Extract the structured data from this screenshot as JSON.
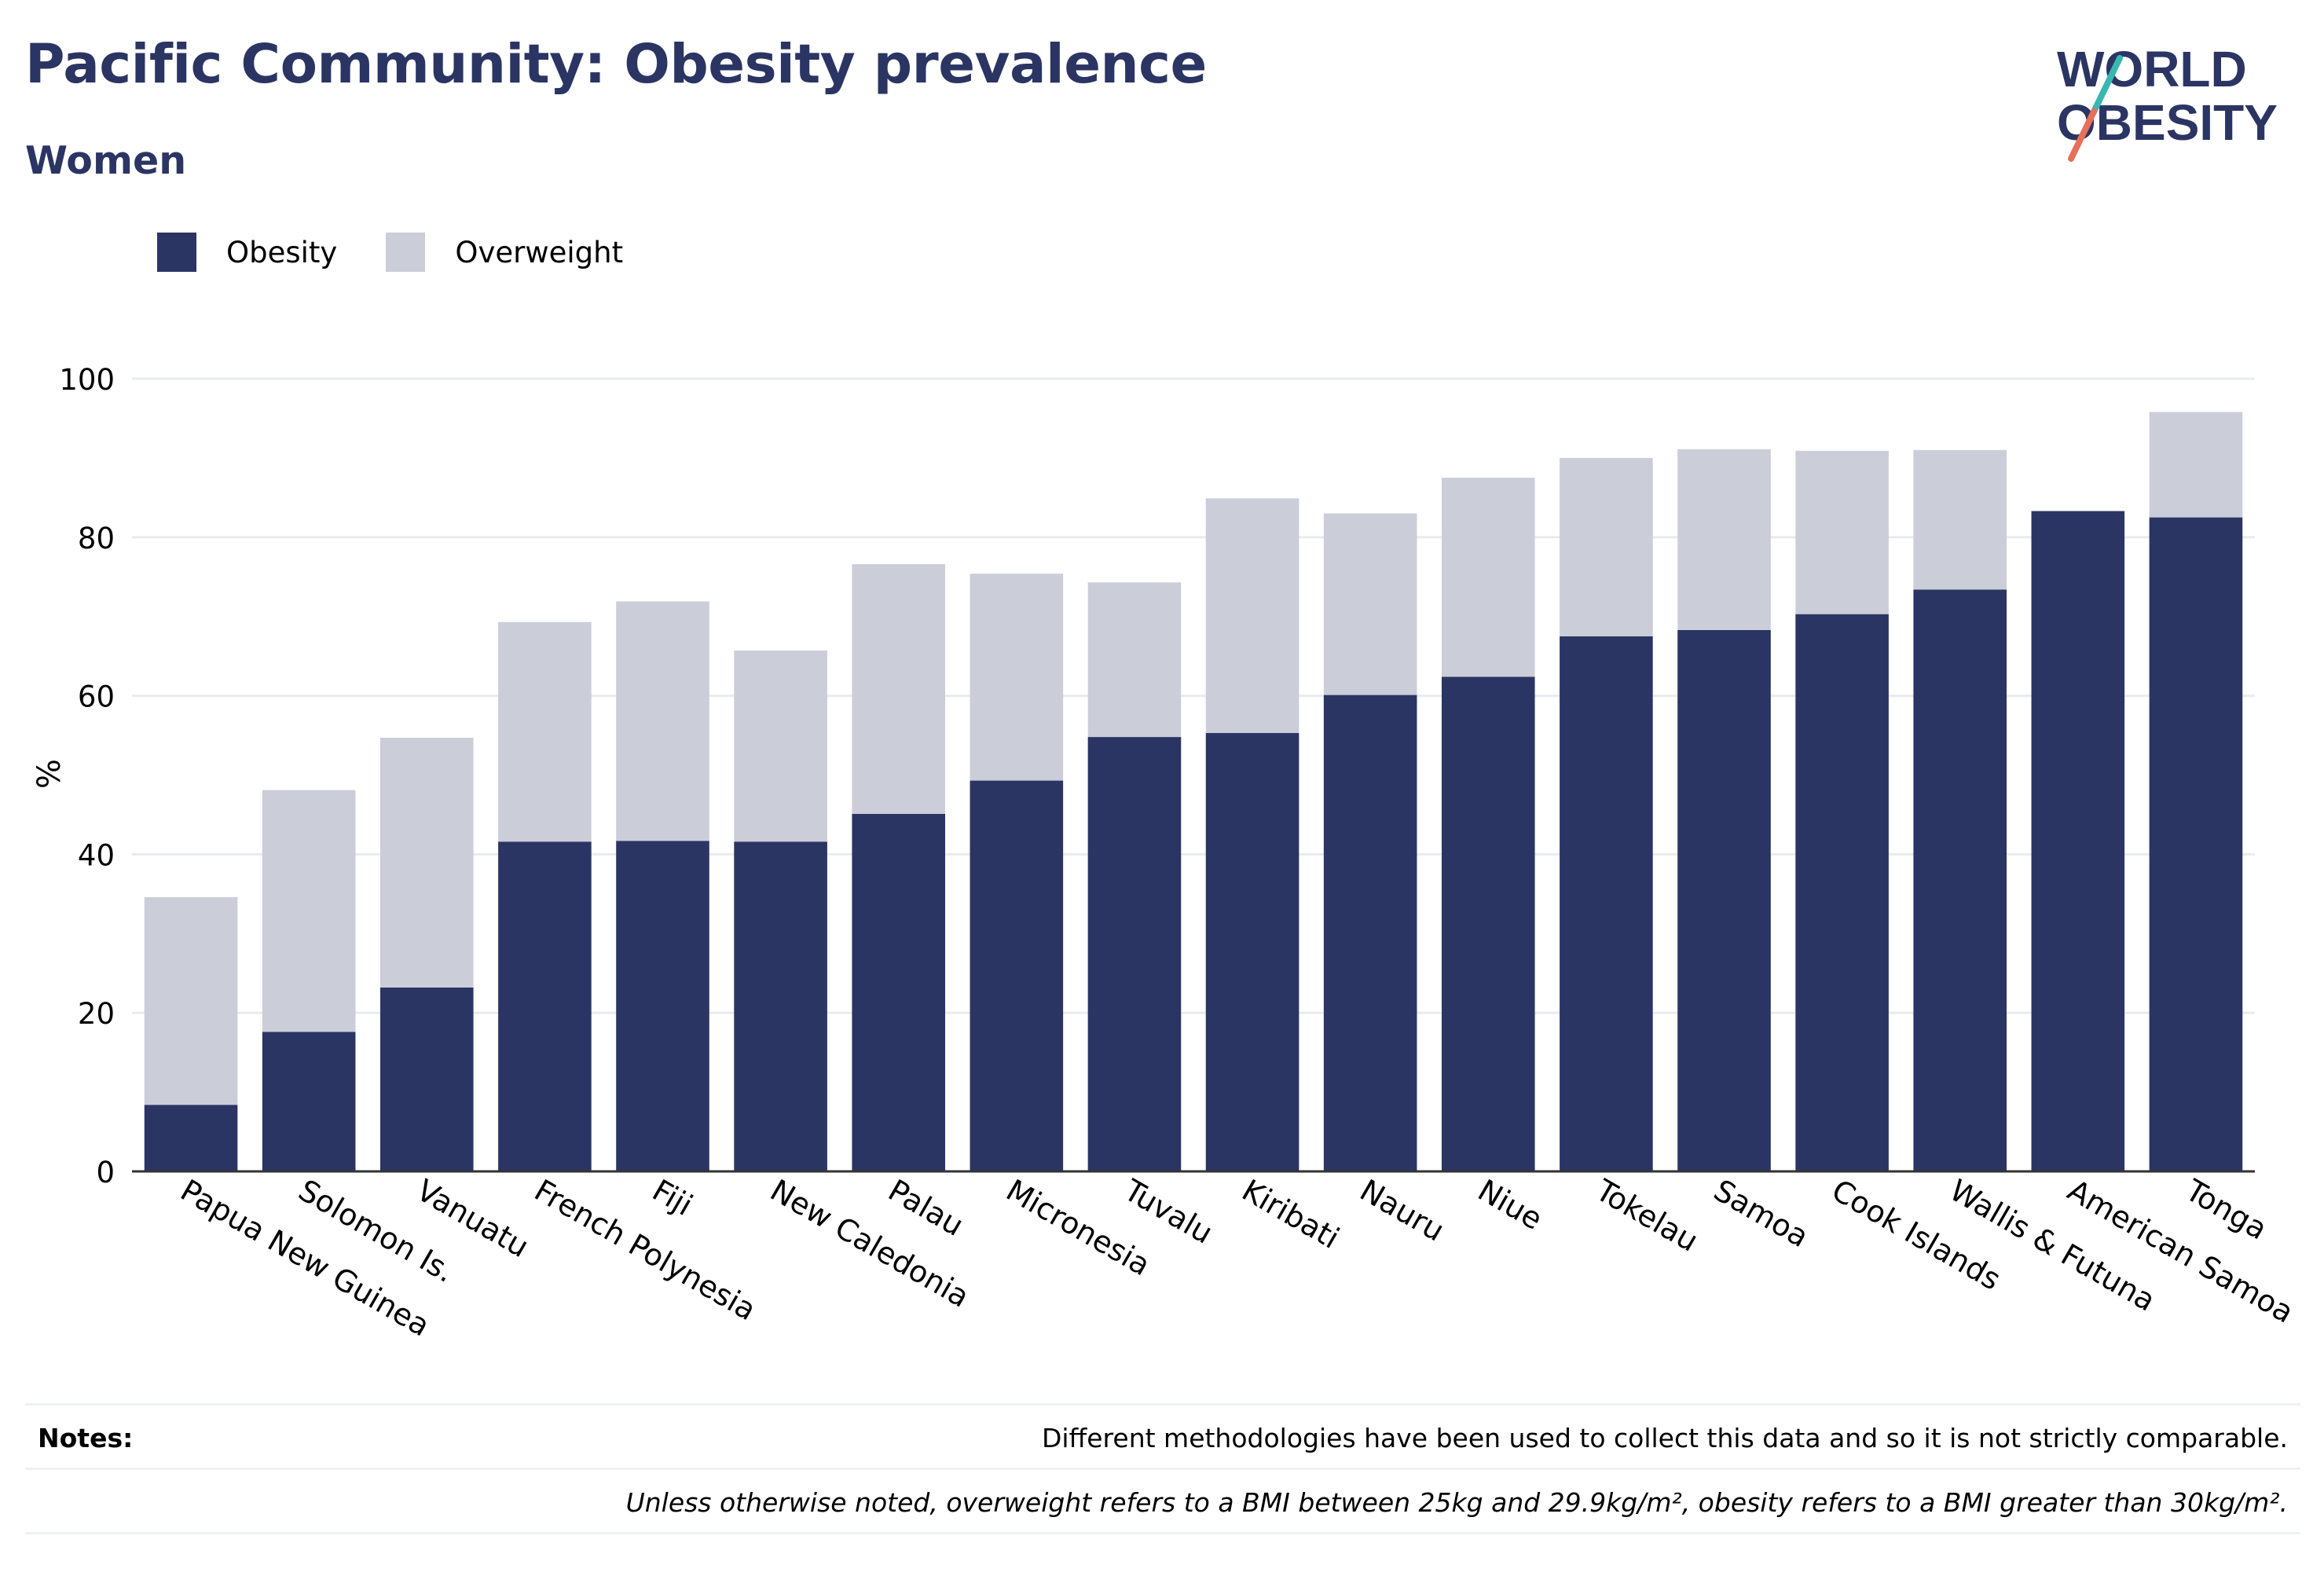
{
  "header": {
    "title": "Pacific Community: Obesity prevalence",
    "subtitle": "Women"
  },
  "logo": {
    "line1": "WORLD",
    "line2": "OBESITY"
  },
  "legend": {
    "obesity_label": "Obesity",
    "overweight_label": "Overweight"
  },
  "colors": {
    "obesity": "#2b3563",
    "overweight": "#cbcdd8",
    "grid": "#e9ebf0",
    "logo_accent_red": "#e8705b",
    "logo_accent_teal": "#3ab7b1"
  },
  "chart_data": {
    "type": "bar",
    "stacked": true,
    "title": "",
    "xlabel": "",
    "ylabel": "%",
    "ylim": [
      0,
      100
    ],
    "yticks": [
      0,
      20,
      40,
      60,
      80,
      100
    ],
    "grid": true,
    "legend_position": "top-left",
    "categories": [
      "Papua New Guinea",
      "Solomon Is.",
      "Vanuatu",
      "French Polynesia",
      "Fiji",
      "New Caledonia",
      "Palau",
      "Micronesia",
      "Tuvalu",
      "Kiribati",
      "Nauru",
      "Niue",
      "Tokelau",
      "Samoa",
      "Cook Islands",
      "Wallis & Futuna",
      "American Samoa",
      "Tonga"
    ],
    "series": [
      {
        "name": "Obesity",
        "values": [
          8.4,
          17.6,
          23.2,
          41.6,
          41.7,
          41.6,
          45.1,
          49.3,
          54.8,
          55.3,
          60.1,
          62.4,
          67.5,
          68.3,
          70.3,
          73.4,
          83.3,
          82.5
        ]
      },
      {
        "name": "Overweight",
        "values": [
          26.2,
          30.5,
          31.5,
          27.7,
          30.2,
          24.1,
          31.5,
          26.1,
          19.5,
          29.6,
          22.9,
          25.1,
          22.5,
          22.8,
          20.6,
          17.6,
          0.0,
          13.3
        ]
      }
    ]
  },
  "notes": {
    "label": "Notes:",
    "line1": "Different methodologies have been used to collect this data and so it is not strictly comparable.",
    "line2": "Unless otherwise noted, overweight refers to a BMI between 25kg and 29.9kg/m², obesity refers to a BMI greater than 30kg/m²."
  }
}
